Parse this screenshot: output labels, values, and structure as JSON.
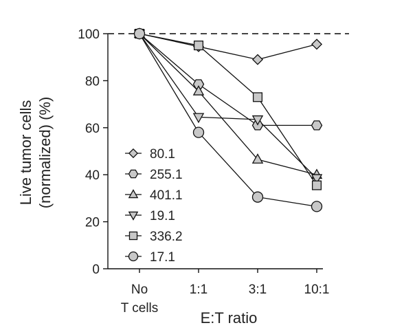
{
  "chart_data": {
    "type": "line",
    "xlabel": "E:T ratio",
    "ylabel_lines": [
      "Live tumor cells",
      "(normalized) (%)"
    ],
    "categories": [
      {
        "lines": [
          "No",
          "T cells"
        ]
      },
      {
        "lines": [
          "1:1"
        ]
      },
      {
        "lines": [
          "3:1"
        ]
      },
      {
        "lines": [
          "10:1"
        ]
      }
    ],
    "ylim": [
      0,
      100
    ],
    "yticks": [
      0,
      20,
      40,
      60,
      80,
      100
    ],
    "reference_line": {
      "y": 100,
      "style": "dashed"
    },
    "grid": false,
    "legend_position": "bottom-left",
    "series": [
      {
        "name": "80.1",
        "marker": "diamond",
        "values": [
          100,
          94.5,
          89,
          95.5
        ]
      },
      {
        "name": "255.1",
        "marker": "hexagon",
        "values": [
          100,
          78.5,
          61,
          61
        ]
      },
      {
        "name": "401.1",
        "marker": "triangle-up",
        "values": [
          100,
          75.5,
          46.5,
          40
        ]
      },
      {
        "name": "19.1",
        "marker": "triangle-down",
        "values": [
          100,
          64.5,
          63.5,
          38.5
        ]
      },
      {
        "name": "336.2",
        "marker": "square",
        "values": [
          100,
          95,
          73,
          35.5
        ]
      },
      {
        "name": "17.1",
        "marker": "circle",
        "values": [
          100,
          58,
          30.5,
          26.5
        ]
      }
    ],
    "colors": {
      "line": "#111111",
      "marker_fill": "#c8c8c8",
      "marker_stroke": "#111111",
      "axis": "#111111",
      "reference_line": "#444444"
    }
  }
}
